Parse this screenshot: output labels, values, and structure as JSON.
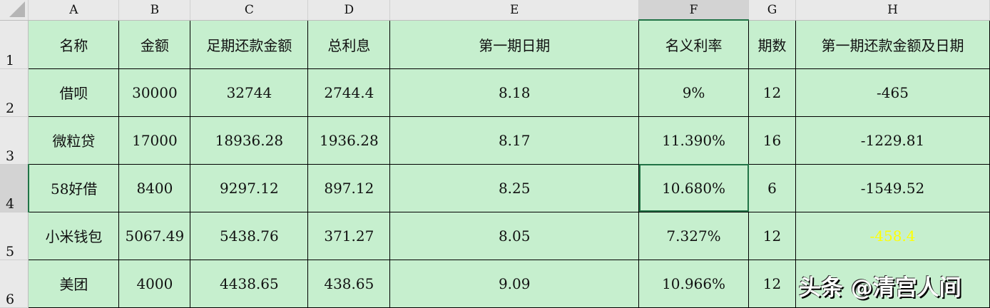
{
  "columns": [
    "A",
    "B",
    "C",
    "D",
    "E",
    "F",
    "G",
    "H"
  ],
  "rows": [
    "1",
    "2",
    "3",
    "4",
    "5",
    "6"
  ],
  "selected_cell": "F4",
  "header": [
    "名称",
    "金额",
    "足期还款金额",
    "总利息",
    "第一期日期",
    "名义利率",
    "期数",
    "第一期还款金额及日期"
  ],
  "data": [
    [
      "借呗",
      "30000",
      "32744",
      "2744.4",
      "8.18",
      "9%",
      "12",
      "-465"
    ],
    [
      "微粒贷",
      "17000",
      "18936.28",
      "1936.28",
      "8.17",
      "11.390%",
      "16",
      "-1229.81"
    ],
    [
      "58好借",
      "8400",
      "9297.12",
      "897.12",
      "8.25",
      "10.680%",
      "6",
      "-1549.52"
    ],
    [
      "小米钱包",
      "5067.49",
      "5438.76",
      "371.27",
      "8.05",
      "7.327%",
      "12",
      "-458.4"
    ],
    [
      "美团",
      "4000",
      "4438.65",
      "438.65",
      "9.09",
      "10.966%",
      "12",
      ""
    ]
  ],
  "colors": {
    "cell_fill": "#c6efce",
    "highlight_text": "#ffff00",
    "selection": "#217346"
  },
  "watermark": "头条 @清宫人间"
}
